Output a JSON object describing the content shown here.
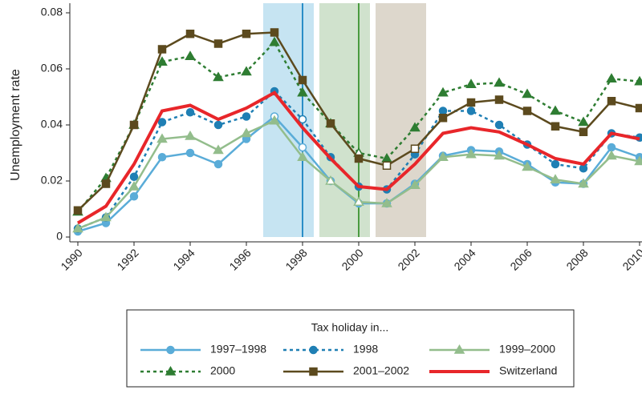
{
  "chart_data": {
    "type": "line",
    "y_label": "Unemployment rate",
    "x": [
      1990,
      1991,
      1992,
      1993,
      1994,
      1995,
      1996,
      1997,
      1998,
      1999,
      2000,
      2001,
      2002,
      2003,
      2004,
      2005,
      2006,
      2007,
      2008,
      2009,
      2010
    ],
    "xlim": [
      1990,
      2010
    ],
    "xticks": [
      1990,
      1992,
      1994,
      1996,
      1998,
      2000,
      2002,
      2004,
      2006,
      2008,
      2010
    ],
    "ylim": [
      0,
      0.08
    ],
    "yticks": [
      0,
      0.02,
      0.04,
      0.06,
      0.08
    ],
    "shaded_regions": [
      {
        "x": [
          1996.6,
          1998.4
        ],
        "color": "#c6e4f2"
      },
      {
        "x": [
          1998.6,
          2000.4
        ],
        "color": "#d0e2cd"
      },
      {
        "x": [
          2000.6,
          2002.4
        ],
        "color": "#ddd7cc"
      }
    ],
    "vertical_lines": [
      {
        "x": 1998,
        "color": "#2a8ec7"
      },
      {
        "x": 2000,
        "color": "#4a9b3f"
      }
    ],
    "legend_title": "Tax holiday in...",
    "series": [
      {
        "name": "1997–1998",
        "color": "#5aacd8",
        "line_style": "solid",
        "marker": "circle",
        "hollow_at": [
          7,
          8
        ],
        "values": [
          0.002,
          0.005,
          0.0145,
          0.0285,
          0.03,
          0.026,
          0.035,
          0.043,
          0.032,
          0.02,
          0.012,
          0.012,
          0.019,
          0.029,
          0.031,
          0.0305,
          0.026,
          0.0195,
          0.019,
          0.032,
          0.0285
        ]
      },
      {
        "name": "1998",
        "color": "#1f7fb4",
        "line_style": "dotted",
        "marker": "circle",
        "hollow_at": [
          8
        ],
        "values": [
          0.003,
          0.007,
          0.0215,
          0.041,
          0.0445,
          0.04,
          0.043,
          0.052,
          0.042,
          0.0285,
          0.018,
          0.017,
          0.0295,
          0.045,
          0.045,
          0.04,
          0.033,
          0.026,
          0.0245,
          0.037,
          0.0355
        ]
      },
      {
        "name": "1999–2000",
        "color": "#93bd8c",
        "line_style": "solid",
        "marker": "triangle",
        "hollow_at": [
          9,
          10
        ],
        "values": [
          0.003,
          0.007,
          0.018,
          0.035,
          0.036,
          0.031,
          0.037,
          0.0415,
          0.0285,
          0.02,
          0.0125,
          0.012,
          0.0185,
          0.0285,
          0.0295,
          0.029,
          0.025,
          0.0205,
          0.019,
          0.029,
          0.027
        ]
      },
      {
        "name": "2000",
        "color": "#2e7d32",
        "line_style": "dotted",
        "marker": "triangle",
        "hollow_at": [
          10
        ],
        "values": [
          0.009,
          0.021,
          0.04,
          0.0625,
          0.0645,
          0.057,
          0.059,
          0.0695,
          0.0515,
          0.0405,
          0.03,
          0.028,
          0.039,
          0.0515,
          0.0545,
          0.055,
          0.051,
          0.045,
          0.041,
          0.0565,
          0.0555
        ]
      },
      {
        "name": "2001–2002",
        "color": "#5c4a1e",
        "line_style": "solid",
        "marker": "square",
        "hollow_at": [
          11,
          12
        ],
        "values": [
          0.0095,
          0.019,
          0.04,
          0.067,
          0.0725,
          0.069,
          0.0725,
          0.073,
          0.056,
          0.0405,
          0.028,
          0.0255,
          0.0315,
          0.0425,
          0.048,
          0.049,
          0.045,
          0.0395,
          0.0375,
          0.0485,
          0.046
        ]
      },
      {
        "name": "Switzerland",
        "color": "#e8262a",
        "line_style": "thick",
        "marker": "none",
        "hollow_at": [],
        "values": [
          0.005,
          0.011,
          0.026,
          0.045,
          0.047,
          0.042,
          0.046,
          0.0515,
          0.039,
          0.028,
          0.018,
          0.017,
          0.026,
          0.037,
          0.039,
          0.0375,
          0.033,
          0.028,
          0.026,
          0.037,
          0.035
        ]
      }
    ]
  }
}
